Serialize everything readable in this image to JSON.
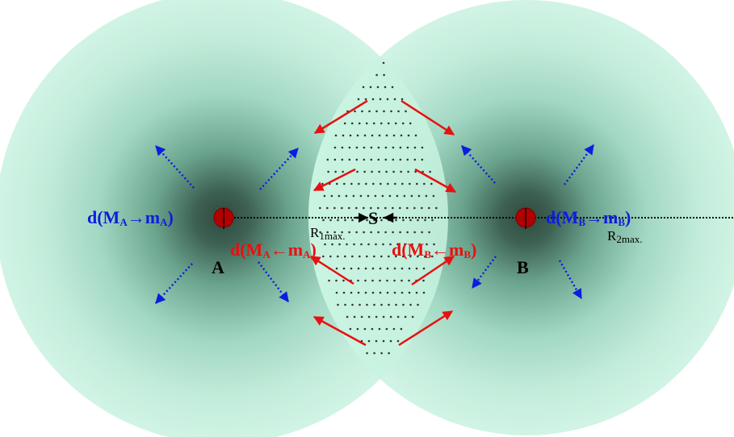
{
  "colors": {
    "zone_center": "#2f4a3e",
    "zone_mid": "#86c6ad",
    "zone_edge": "#ccf2e2",
    "overlap": "#c8f3e0",
    "atom": "#b30000",
    "red_arrow": "#e81010",
    "blue_arrow": "#0b1de0",
    "black": "#000000"
  },
  "labels": {
    "atom_a": "A",
    "atom_b": "B",
    "center": "S",
    "radius_1": "R",
    "radius_1_sub": "1max.",
    "radius_2": "R",
    "radius_2_sub": "2max.",
    "d_out_a": {
      "prefix": "d(M",
      "s1": "A",
      "arrow": "→m",
      "s2": "A",
      "suffix": ")"
    },
    "d_in_a": {
      "prefix": "d(M",
      "s1": "A",
      "arrow": "←m",
      "s2": "A",
      "suffix": ")"
    },
    "d_out_b": {
      "prefix": "d(M",
      "s1": "B",
      "arrow": "→m",
      "s2": "B",
      "suffix": ")"
    },
    "d_in_b": {
      "prefix": "d(M",
      "s1": "B",
      "arrow": "←m",
      "s2": "B",
      "suffix": ")"
    }
  },
  "icons": [
    "atom-a-icon",
    "atom-b-icon",
    "dotted-arrow-icon",
    "solid-arrow-icon"
  ]
}
